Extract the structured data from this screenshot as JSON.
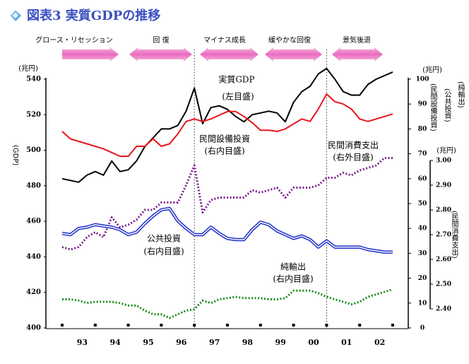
{
  "chart_data": {
    "type": "line",
    "title": "図表3 実質GDPの推移",
    "phases": [
      "グロース・リセッション",
      "回 復",
      "マイナス成長",
      "緩やかな回復",
      "景気後退"
    ],
    "ylabel_unit": "(兆円)",
    "ylabel": "(GDP)",
    "y2label_unit": "(兆円)",
    "y2labels": [
      "(民間設備投資)",
      "(公共投資)",
      "(純輸出)"
    ],
    "y3label_unit": "(兆円)",
    "y3label": "(民間消費支出)",
    "annotations": [
      "実質GDP",
      "(左目盛)",
      "民間設備投資",
      "(右内目盛)",
      "民間消費支出",
      "(右外目盛)",
      "公共投資",
      "(右内目盛)",
      "純輸出",
      "(右内目盛)"
    ],
    "categories": [
      null,
      null,
      "93",
      null,
      null,
      null,
      "94",
      null,
      null,
      null,
      "95",
      null,
      null,
      null,
      "96",
      null,
      null,
      null,
      "97",
      null,
      null,
      null,
      "98",
      null,
      null,
      null,
      "99",
      null,
      null,
      null,
      "00",
      null,
      null,
      null,
      "01",
      null,
      null,
      null,
      "02",
      null,
      null
    ],
    "ylim": [
      400,
      540
    ],
    "yticks": [
      400,
      420,
      440,
      460,
      480,
      500,
      520,
      540
    ],
    "y2lim": [
      0,
      100
    ],
    "y2ticks": [
      0,
      10,
      20,
      30,
      40,
      50,
      60,
      70,
      80,
      90,
      100
    ],
    "y3lim": [
      2.4,
      3.0
    ],
    "y3ticks": [
      {
        "value": 2.4,
        "label": "2.40"
      },
      {
        "value": 2.5,
        "label": "2.50"
      },
      {
        "value": 2.6,
        "label": "2.60"
      },
      {
        "value": 2.7,
        "label": "2.70"
      },
      {
        "value": 2.8,
        "label": "2.80"
      },
      {
        "value": 2.9,
        "label": "2.90"
      },
      {
        "value": 3.0,
        "label": "3.00"
      }
    ],
    "series": [
      {
        "name": "実質GDP",
        "color": "#000000",
        "style": "solid",
        "axis": "y",
        "values": [
          484,
          483,
          482,
          486,
          488,
          486,
          494,
          488,
          489,
          494,
          502,
          507,
          512,
          512,
          514,
          522,
          535,
          515,
          524,
          525,
          523,
          519,
          516,
          520,
          521,
          522,
          521,
          516,
          527,
          533,
          536,
          543,
          546,
          540,
          533,
          531,
          531,
          537,
          540,
          542,
          544
        ]
      },
      {
        "name": "民間設備投資",
        "color": "#e8141c",
        "style": "solid",
        "axis": "y2",
        "values": [
          79,
          76,
          75,
          74,
          73,
          72,
          70.5,
          69,
          69,
          73,
          73,
          76,
          73,
          74,
          78,
          83,
          84,
          83,
          84,
          85.5,
          87,
          87,
          85,
          82.5,
          79.5,
          79.5,
          79,
          80,
          82,
          84,
          83,
          88,
          94,
          91,
          90,
          88,
          84,
          83,
          84,
          85,
          86
        ]
      },
      {
        "name": "民間消費支出",
        "color": "#7a1f8c",
        "style": "dotted",
        "axis": "y3",
        "values": [
          2.65,
          2.64,
          2.65,
          2.69,
          2.71,
          2.69,
          2.77,
          2.73,
          2.74,
          2.76,
          2.8,
          2.8,
          2.83,
          2.83,
          2.83,
          2.9,
          2.98,
          2.79,
          2.84,
          2.85,
          2.85,
          2.85,
          2.85,
          2.88,
          2.87,
          2.88,
          2.89,
          2.85,
          2.89,
          2.89,
          2.89,
          2.9,
          2.93,
          2.93,
          2.95,
          2.94,
          2.96,
          2.97,
          2.98,
          3.01,
          3.01
        ]
      },
      {
        "name": "公共投資",
        "color": "#1e2fc8",
        "style": "double",
        "axis": "y2",
        "values": [
          38,
          37.5,
          40,
          40.5,
          41.5,
          41,
          40.5,
          39.5,
          37.5,
          38.5,
          42,
          45,
          47.5,
          48,
          43,
          40,
          37.5,
          37.5,
          40.5,
          38,
          36,
          35.5,
          35.5,
          39.5,
          42.5,
          41.5,
          39,
          37.5,
          36,
          37,
          35.5,
          32.5,
          35,
          32.5,
          32.5,
          32.5,
          32.5,
          31.5,
          31,
          30.5,
          30.5
        ]
      },
      {
        "name": "純輸出",
        "color": "#1a8a1a",
        "style": "dotted",
        "axis": "y2",
        "values": [
          11.5,
          11.5,
          11,
          10,
          10.5,
          10.5,
          10.5,
          10,
          9,
          9,
          7,
          5.5,
          5.5,
          4,
          5.5,
          7,
          7.5,
          11,
          10,
          11.5,
          12,
          12.5,
          12,
          12,
          12,
          11.5,
          11.5,
          12,
          15,
          15,
          15,
          14,
          12.5,
          11.5,
          10.5,
          9.5,
          10.5,
          12.5,
          13.5,
          14.5,
          15.5
        ]
      }
    ]
  }
}
